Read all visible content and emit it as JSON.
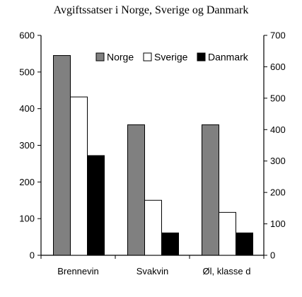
{
  "chart_data": {
    "type": "bar",
    "title": "Avgiftssatser i Norge, Sverige og Danmark",
    "xlabel": "",
    "ylabel": "",
    "categories": [
      "Brennevin",
      "Svakvin",
      "Øl, klasse d"
    ],
    "series": [
      {
        "name": "Norge",
        "values": [
          545,
          356,
          356
        ],
        "color": "#808080"
      },
      {
        "name": "Sverige",
        "values": [
          432,
          150,
          117
        ],
        "color": "#ffffff"
      },
      {
        "name": "Danmark",
        "values": [
          272,
          61,
          61
        ],
        "color": "#000000"
      }
    ],
    "ylim": [
      0,
      600
    ],
    "y2lim": [
      0,
      700
    ],
    "yticks": [
      0,
      100,
      200,
      300,
      400,
      500,
      600
    ],
    "y2ticks": [
      0,
      100,
      200,
      300,
      400,
      500,
      600,
      700
    ],
    "legend_position": "top-right",
    "grid": false
  }
}
